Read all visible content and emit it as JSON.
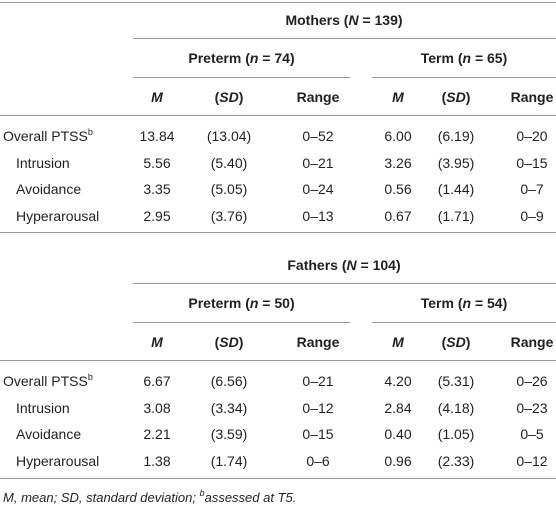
{
  "sections": [
    {
      "title": [
        {
          "t": "Mothers ("
        },
        {
          "t": "N",
          "i": true
        },
        {
          "t": " = 139)"
        }
      ],
      "groups": [
        [
          {
            "t": "Preterm ("
          },
          {
            "t": "n",
            "i": true
          },
          {
            "t": " = 74)"
          }
        ],
        [
          {
            "t": "Term ("
          },
          {
            "t": "n",
            "i": true
          },
          {
            "t": " = 65)"
          }
        ]
      ],
      "columns": [
        [
          {
            "t": "M",
            "i": true
          }
        ],
        [
          {
            "t": "("
          },
          {
            "t": "SD",
            "i": true
          },
          {
            "t": ")"
          }
        ],
        [
          {
            "t": "Range"
          }
        ],
        [
          {
            "t": "M",
            "i": true
          }
        ],
        [
          {
            "t": "("
          },
          {
            "t": "SD",
            "i": true
          },
          {
            "t": ")"
          }
        ],
        [
          {
            "t": "Range"
          }
        ]
      ],
      "rows": [
        {
          "label": [
            {
              "t": "Overall PTSS"
            },
            {
              "t": "b",
              "s": true
            }
          ],
          "cells": [
            "13.84",
            "(13.04)",
            "0–52",
            "6.00",
            "(6.19)",
            "0–20"
          ]
        },
        {
          "label": [
            {
              "t": "Intrusion"
            }
          ],
          "cells": [
            "5.56",
            "(5.40)",
            "0–21",
            "3.26",
            "(3.95)",
            "0–15"
          ]
        },
        {
          "label": [
            {
              "t": "Avoidance"
            }
          ],
          "cells": [
            "3.35",
            "(5.05)",
            "0–24",
            "0.56",
            "(1.44)",
            "0–7"
          ]
        },
        {
          "label": [
            {
              "t": "Hyperarousal"
            }
          ],
          "cells": [
            "2.95",
            "(3.76)",
            "0–13",
            "0.67",
            "(1.71)",
            "0–9"
          ]
        }
      ]
    },
    {
      "title": [
        {
          "t": "Fathers ("
        },
        {
          "t": "N",
          "i": true
        },
        {
          "t": " = 104)"
        }
      ],
      "groups": [
        [
          {
            "t": "Preterm ("
          },
          {
            "t": "n",
            "i": true
          },
          {
            "t": " = 50)"
          }
        ],
        [
          {
            "t": "Term ("
          },
          {
            "t": "n",
            "i": true
          },
          {
            "t": " = 54)"
          }
        ]
      ],
      "columns": [
        [
          {
            "t": "M",
            "i": true
          }
        ],
        [
          {
            "t": "("
          },
          {
            "t": "SD",
            "i": true
          },
          {
            "t": ")"
          }
        ],
        [
          {
            "t": "Range"
          }
        ],
        [
          {
            "t": "M",
            "i": true
          }
        ],
        [
          {
            "t": "("
          },
          {
            "t": "SD",
            "i": true
          },
          {
            "t": ")"
          }
        ],
        [
          {
            "t": "Range"
          }
        ]
      ],
      "rows": [
        {
          "label": [
            {
              "t": "Overall PTSS"
            },
            {
              "t": "b",
              "s": true
            }
          ],
          "cells": [
            "6.67",
            "(6.56)",
            "0–21",
            "4.20",
            "(5.31)",
            "0–26"
          ]
        },
        {
          "label": [
            {
              "t": "Intrusion"
            }
          ],
          "cells": [
            "3.08",
            "(3.34)",
            "0–12",
            "2.84",
            "(4.18)",
            "0–23"
          ]
        },
        {
          "label": [
            {
              "t": "Avoidance"
            }
          ],
          "cells": [
            "2.21",
            "(3.59)",
            "0–15",
            "0.40",
            "(1.05)",
            "0–5"
          ]
        },
        {
          "label": [
            {
              "t": "Hyperarousal"
            }
          ],
          "cells": [
            "1.38",
            "(1.74)",
            "0–6",
            "0.96",
            "(2.33)",
            "0–12"
          ]
        }
      ]
    }
  ],
  "footnote": [
    {
      "t": "M",
      "i": true
    },
    {
      "t": ", mean; "
    },
    {
      "t": "SD",
      "i": true
    },
    {
      "t": ", standard deviation; "
    },
    {
      "t": "b",
      "s": true
    },
    {
      "t": "assessed at T5."
    }
  ]
}
